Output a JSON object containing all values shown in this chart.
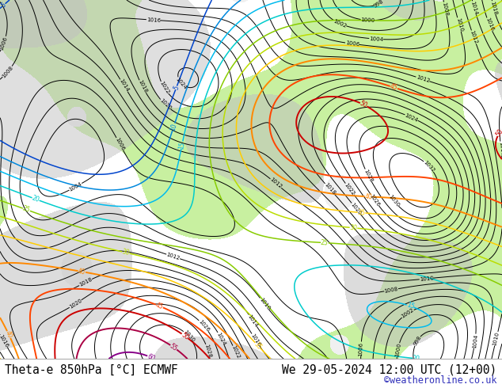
{
  "title_left": "Theta-e 850hPa [°C] ECMWF",
  "title_right": "We 29-05-2024 12:00 UTC (12+00)",
  "credit": "©weatheronline.co.uk",
  "land_color": "#c8f0a0",
  "sea_color": "#f0f0f0",
  "cloud_color": "#c0c0c0",
  "fig_width": 6.34,
  "fig_height": 4.9,
  "dpi": 100,
  "bottom_bar_color": "#ffffff",
  "title_fontsize": 10.5,
  "credit_fontsize": 8.5,
  "credit_color": "#3333bb"
}
